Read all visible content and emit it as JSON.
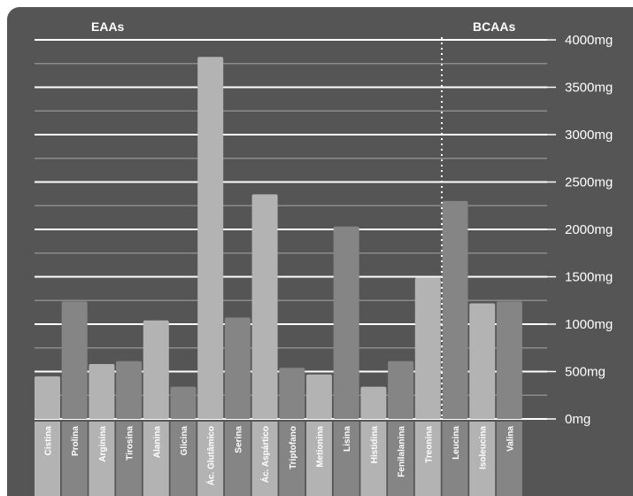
{
  "colors": {
    "background": "#555555",
    "bar_light": "#b3b3b3",
    "bar_dark": "#858585",
    "gridline_major": "#ffffff",
    "gridline_minor": "#8c8c8c",
    "text": "#ffffff"
  },
  "chart_data": {
    "type": "bar",
    "title": "",
    "xlabel": "",
    "ylabel": "",
    "ylim": [
      0,
      4000
    ],
    "y_axis_position": "right",
    "y_ticks": [
      "0mg",
      "500mg",
      "1000mg",
      "1500mg",
      "2000mg",
      "2500mg",
      "3000mg",
      "3500mg",
      "4000mg"
    ],
    "y_tick_values": [
      0,
      500,
      1000,
      1500,
      2000,
      2500,
      3000,
      3500,
      4000
    ],
    "grid": true,
    "groups": [
      {
        "label": "EAAs",
        "from_index": 0,
        "to_index": 14
      },
      {
        "label": "BCAAs",
        "from_index": 15,
        "to_index": 17
      }
    ],
    "categories": [
      "Cistina",
      "Prolina",
      "Arginina",
      "Tirosina",
      "Alanina",
      "Glicina",
      "Ác. Glutâmico",
      "Serina",
      "Ác. Aspártico",
      "Triptofano",
      "Metionina",
      "Lisina",
      "Histidina",
      "Fenilalanina",
      "Treonina",
      "Leucina",
      "Isoleucina",
      "Valina"
    ],
    "values": [
      450,
      1240,
      580,
      610,
      1040,
      340,
      3820,
      1070,
      2370,
      540,
      470,
      2030,
      340,
      610,
      1490,
      2300,
      1220,
      1240
    ],
    "bar_shades": [
      "light",
      "dark",
      "light",
      "dark",
      "light",
      "dark",
      "light",
      "dark",
      "light",
      "dark",
      "light",
      "dark",
      "light",
      "dark",
      "light",
      "dark",
      "light",
      "dark"
    ]
  }
}
